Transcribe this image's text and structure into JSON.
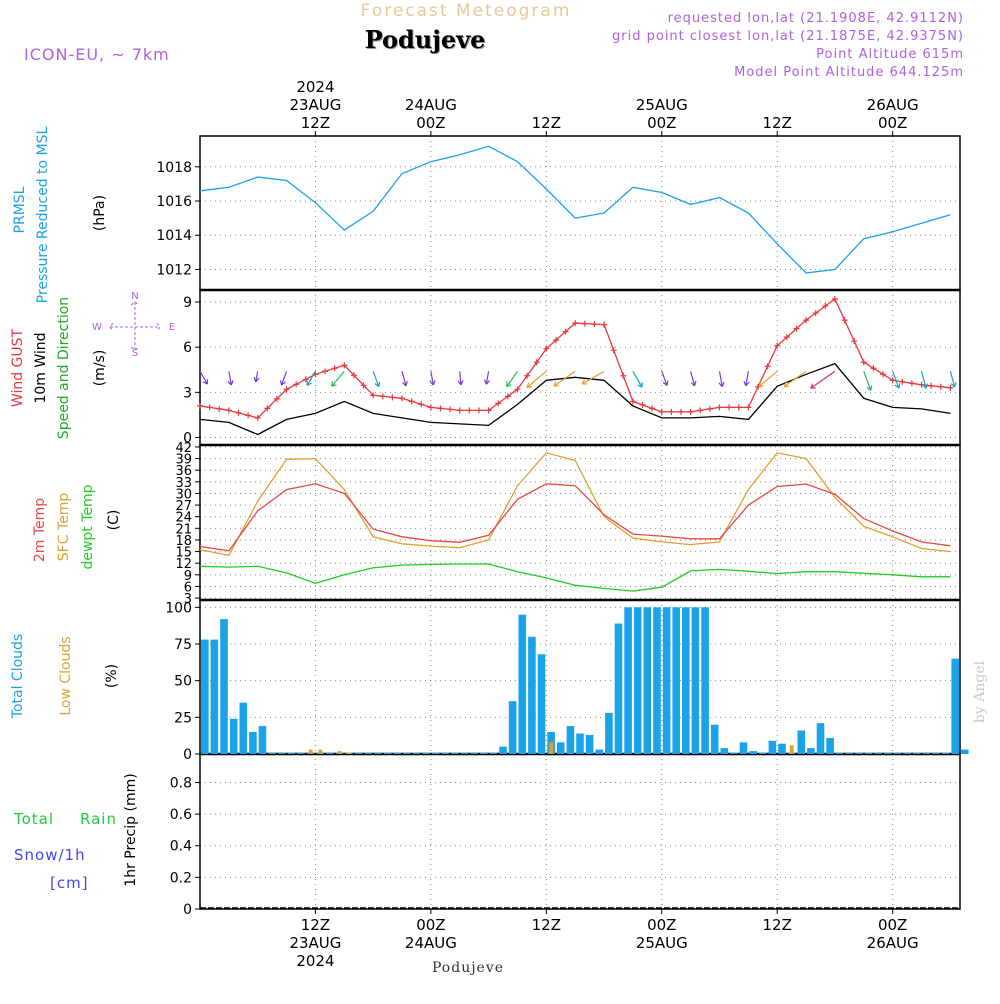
{
  "header": {
    "faded_title": "Forecast Meteogram",
    "station": "Podujeve",
    "model": "ICON-EU, ~ 7km",
    "requested": "requested lon,lat (21.1908E, 42.9112N)",
    "grid_point": "grid point closest lon,lat (21.1875E, 42.9375N)",
    "point_altitude": "Point Altitude 615m",
    "model_altitude": "Model Point Altitude 644.125m",
    "footer_station": "Podujeve",
    "watermark": "by Angel"
  },
  "colors": {
    "pressure": "#1aa3e8",
    "gust": "#e8383c",
    "wind": "#000000",
    "windlabel_green": "#22aa22",
    "t2m": "#e84848",
    "sfc": "#e0a030",
    "dew": "#22cc22",
    "total_clouds": "#1aa3e8",
    "low_clouds": "#e0a030",
    "rain": "#22cc44",
    "snow": "#4444ee",
    "purple": "#b060e0",
    "grid": "#888888"
  },
  "chart_data": [
    {
      "type": "line",
      "id": "pressure",
      "title": "Pressure Reduced to MSL",
      "legend": [
        "PRMSL",
        "Pressure Reduced to MSL"
      ],
      "ylabel": "(hPa)",
      "ylim": [
        1010.8,
        1019.8
      ],
      "yticks": [
        1012,
        1014,
        1016,
        1018
      ],
      "x_hours": [
        0,
        3,
        6,
        9,
        12,
        15,
        18,
        21,
        24,
        27,
        30,
        33,
        36,
        39,
        42,
        45,
        48,
        51,
        54,
        57,
        60,
        63,
        66,
        69,
        72,
        75,
        78
      ],
      "values": [
        1016.6,
        1016.8,
        1017.4,
        1017.2,
        1015.9,
        1014.3,
        1015.4,
        1017.6,
        1018.3,
        1018.7,
        1019.2,
        1018.3,
        1016.7,
        1015.0,
        1015.3,
        1016.8,
        1016.5,
        1015.8,
        1016.2,
        1015.3,
        1013.5,
        1011.8,
        1012.0,
        1013.8,
        1014.2,
        1014.7,
        1015.2
      ]
    },
    {
      "type": "line",
      "id": "wind",
      "legend": [
        "Wind GUST",
        "10m Wind",
        "Speed and Direction"
      ],
      "ylabel": "(m/s)",
      "ylim": [
        -0.5,
        9.8
      ],
      "yticks": [
        0,
        3,
        6,
        9
      ],
      "compass": {
        "n": "N",
        "s": "S",
        "w": "W",
        "e": "E"
      },
      "x_hours": [
        0,
        3,
        6,
        9,
        12,
        15,
        18,
        21,
        24,
        27,
        30,
        33,
        36,
        39,
        42,
        45,
        48,
        51,
        54,
        57,
        60,
        63,
        66,
        69,
        72,
        75,
        78
      ],
      "gust": [
        2.1,
        1.8,
        1.3,
        3.2,
        4.2,
        4.8,
        2.8,
        2.6,
        2.0,
        1.8,
        1.8,
        3.2,
        5.9,
        7.6,
        7.5,
        2.4,
        1.7,
        1.7,
        2.0,
        2.0,
        6.1,
        7.8,
        9.2,
        5.0,
        3.8,
        3.5,
        3.3
      ],
      "wind": [
        1.2,
        1.0,
        0.2,
        1.2,
        1.6,
        2.4,
        1.6,
        1.3,
        1.0,
        0.9,
        0.8,
        2.2,
        3.8,
        4.0,
        3.8,
        2.1,
        1.3,
        1.3,
        1.4,
        1.2,
        3.4,
        4.2,
        4.9,
        2.6,
        2.0,
        1.9,
        1.6
      ],
      "arrow_dir_deg": [
        150,
        170,
        190,
        200,
        210,
        220,
        160,
        165,
        170,
        175,
        190,
        215,
        230,
        235,
        240,
        150,
        160,
        165,
        170,
        190,
        230,
        235,
        235,
        160,
        160,
        165,
        165
      ]
    },
    {
      "type": "line",
      "id": "temperature",
      "legend": [
        "2m Temp",
        "SFC Temp",
        "dewpt Temp"
      ],
      "ylabel": "(C)",
      "ylim": [
        2.5,
        42.5
      ],
      "yticks": [
        3,
        6,
        9,
        12,
        15,
        18,
        21,
        24,
        27,
        30,
        33,
        36,
        39,
        42
      ],
      "x_hours": [
        0,
        3,
        6,
        9,
        12,
        15,
        18,
        21,
        24,
        27,
        30,
        33,
        36,
        39,
        42,
        45,
        48,
        51,
        54,
        57,
        60,
        63,
        66,
        69,
        72,
        75,
        78
      ],
      "t2m": [
        16.3,
        15.2,
        25.5,
        31.0,
        32.5,
        30.0,
        20.8,
        18.8,
        17.8,
        17.4,
        19.2,
        28.5,
        32.5,
        32.0,
        24.5,
        19.5,
        19.0,
        18.3,
        18.3,
        27.0,
        31.8,
        32.4,
        29.8,
        23.5,
        20.3,
        17.5,
        16.5
      ],
      "sfc": [
        15.5,
        14.0,
        28.0,
        38.8,
        39.0,
        31.0,
        18.8,
        17.0,
        16.4,
        16.0,
        18.0,
        32.0,
        40.5,
        38.5,
        24.0,
        18.5,
        17.5,
        16.8,
        17.5,
        31.0,
        40.5,
        39.0,
        29.0,
        21.5,
        18.8,
        15.8,
        15.0
      ],
      "dewpoint": [
        11.2,
        11.0,
        11.2,
        9.5,
        6.8,
        9.0,
        10.8,
        11.5,
        11.7,
        11.8,
        11.8,
        9.8,
        8.2,
        6.3,
        5.5,
        4.8,
        5.8,
        10.0,
        10.4,
        9.9,
        9.3,
        9.8,
        9.8,
        9.4,
        9.0,
        8.5,
        8.5
      ]
    },
    {
      "type": "bar",
      "id": "clouds",
      "legend": [
        "Total Clouds",
        "Low Clouds"
      ],
      "ylabel": "(%)",
      "ylim": [
        0,
        105
      ],
      "yticks": [
        0,
        25,
        50,
        75,
        100
      ],
      "x_hours": [
        0,
        1,
        2,
        3,
        4,
        5,
        6,
        7,
        8,
        9,
        10,
        11,
        12,
        13,
        14,
        15,
        16,
        17,
        18,
        19,
        20,
        21,
        22,
        23,
        24,
        25,
        26,
        27,
        28,
        29,
        30,
        31,
        32,
        33,
        34,
        35,
        36,
        37,
        38,
        39,
        40,
        41,
        42,
        43,
        44,
        45,
        46,
        47,
        48,
        49,
        50,
        51,
        52,
        53,
        54,
        55,
        56,
        57,
        58,
        59,
        60,
        61,
        62,
        63,
        64,
        65,
        66,
        67,
        68,
        69,
        70,
        71,
        72,
        73,
        74,
        75,
        76,
        77,
        78,
        79
      ],
      "total": [
        78,
        78,
        92,
        24,
        35,
        15,
        19,
        0,
        0,
        0,
        0,
        0,
        0,
        0,
        0,
        0,
        0,
        0,
        0,
        0,
        0,
        0,
        0,
        0,
        0,
        0,
        0,
        0,
        0,
        0,
        0,
        5,
        36,
        95,
        80,
        68,
        15,
        8,
        19,
        14,
        13,
        3,
        28,
        89,
        100,
        100,
        100,
        100,
        100,
        100,
        100,
        100,
        100,
        20,
        4,
        0,
        8,
        2,
        0,
        9,
        7,
        1,
        16,
        4,
        21,
        11,
        0,
        0,
        0,
        0,
        0,
        0,
        0,
        0,
        0,
        0,
        0,
        0,
        65,
        3
      ],
      "low": [
        0,
        0,
        0,
        0,
        0,
        0,
        0,
        0,
        0,
        0,
        0,
        3,
        3,
        0,
        2,
        1,
        0,
        0,
        0,
        0,
        0,
        0,
        0,
        0,
        0,
        0,
        0,
        0,
        0,
        0,
        0,
        0,
        0,
        0,
        0,
        0,
        8,
        0,
        0,
        0,
        0,
        0,
        0,
        0,
        0,
        0,
        0,
        0,
        0,
        0,
        0,
        0,
        0,
        0,
        0,
        0,
        0,
        0,
        0,
        0,
        0,
        6,
        0,
        0,
        0,
        0,
        0,
        0,
        0,
        0,
        0,
        0,
        0,
        0,
        0,
        0,
        0,
        0,
        0,
        0
      ]
    },
    {
      "type": "bar",
      "id": "precip",
      "legend": [
        "Total",
        "Rain",
        "Snow/1h",
        "[cm]"
      ],
      "ylabel": "1hr Precip (mm)",
      "ylim": [
        0,
        0.98
      ],
      "yticks": [
        "0",
        "0.2",
        "0.4",
        "0.6",
        "0.8"
      ],
      "values": [
        0
      ]
    }
  ],
  "time_axis": {
    "top_ticks": [
      {
        "hour": 12,
        "lines": [
          "2024",
          "23AUG",
          "12Z"
        ]
      },
      {
        "hour": 24,
        "lines": [
          "24AUG",
          "00Z"
        ]
      },
      {
        "hour": 36,
        "lines": [
          "12Z"
        ]
      },
      {
        "hour": 48,
        "lines": [
          "25AUG",
          "00Z"
        ]
      },
      {
        "hour": 60,
        "lines": [
          "12Z"
        ]
      },
      {
        "hour": 72,
        "lines": [
          "26AUG",
          "00Z"
        ]
      }
    ],
    "bottom_ticks": [
      {
        "hour": 12,
        "lines": [
          "12Z",
          "23AUG",
          "2024"
        ]
      },
      {
        "hour": 24,
        "lines": [
          "00Z",
          "24AUG"
        ]
      },
      {
        "hour": 36,
        "lines": [
          "12Z"
        ]
      },
      {
        "hour": 48,
        "lines": [
          "00Z",
          "25AUG"
        ]
      },
      {
        "hour": 60,
        "lines": [
          "12Z"
        ]
      },
      {
        "hour": 72,
        "lines": [
          "00Z",
          "26AUG"
        ]
      }
    ]
  }
}
